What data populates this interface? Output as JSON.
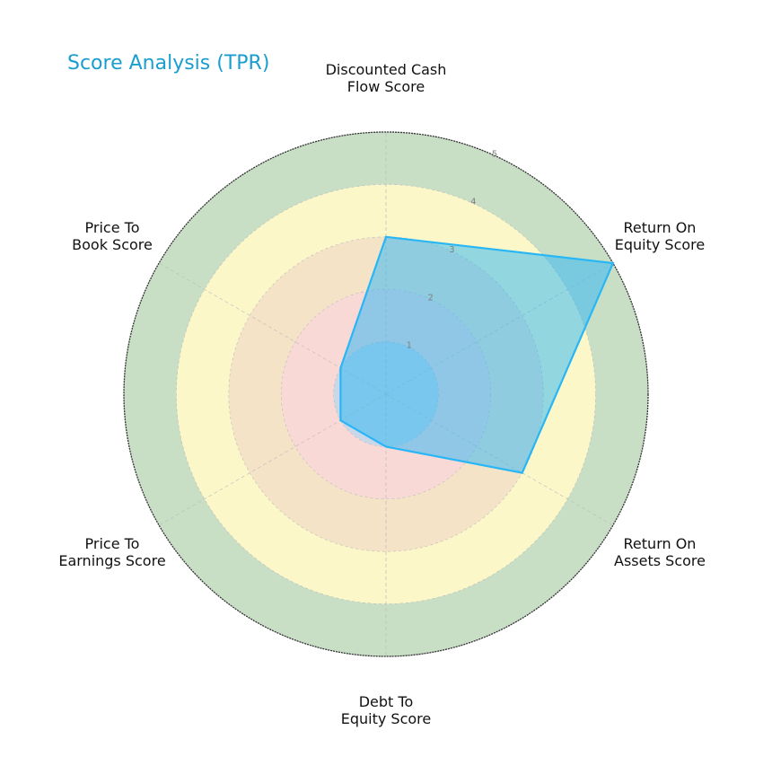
{
  "chart_data": {
    "type": "radar",
    "title": "Score Analysis (TPR)",
    "categories": [
      "Discounted Cash Flow Score",
      "Return On Equity Score",
      "Return On Assets Score",
      "Debt To Equity Score",
      "Price To Earnings Score",
      "Price To Book Score"
    ],
    "series": [
      {
        "name": "TPR",
        "values": [
          3,
          5,
          3,
          1,
          1,
          1
        ],
        "color": "#29b6f6"
      }
    ],
    "rlim": [
      0,
      5
    ],
    "r_ticks": [
      1,
      2,
      3,
      4,
      5
    ],
    "bands": [
      {
        "from": 0,
        "to": 1,
        "color": "#c9d8e8"
      },
      {
        "from": 1,
        "to": 2,
        "color": "#f9d9d6"
      },
      {
        "from": 2,
        "to": 3,
        "color": "#f5e3c8"
      },
      {
        "from": 3,
        "to": 4,
        "color": "#fbf7c9"
      },
      {
        "from": 4,
        "to": 5,
        "color": "#c8dfc6"
      }
    ],
    "grid": true,
    "legend": null
  },
  "title": "Score Analysis (TPR)",
  "labels": {
    "dcf": [
      "Discounted Cash",
      "Flow Score"
    ],
    "roe": [
      "Return On",
      "Equity Score"
    ],
    "roa": [
      "Return On",
      "Assets Score"
    ],
    "de": [
      "Debt To",
      "Equity Score"
    ],
    "pe": [
      "Price To",
      "Earnings Score"
    ],
    "pb": [
      "Price To",
      "Book Score"
    ]
  },
  "ticks": [
    "1",
    "2",
    "3",
    "4",
    "5"
  ]
}
